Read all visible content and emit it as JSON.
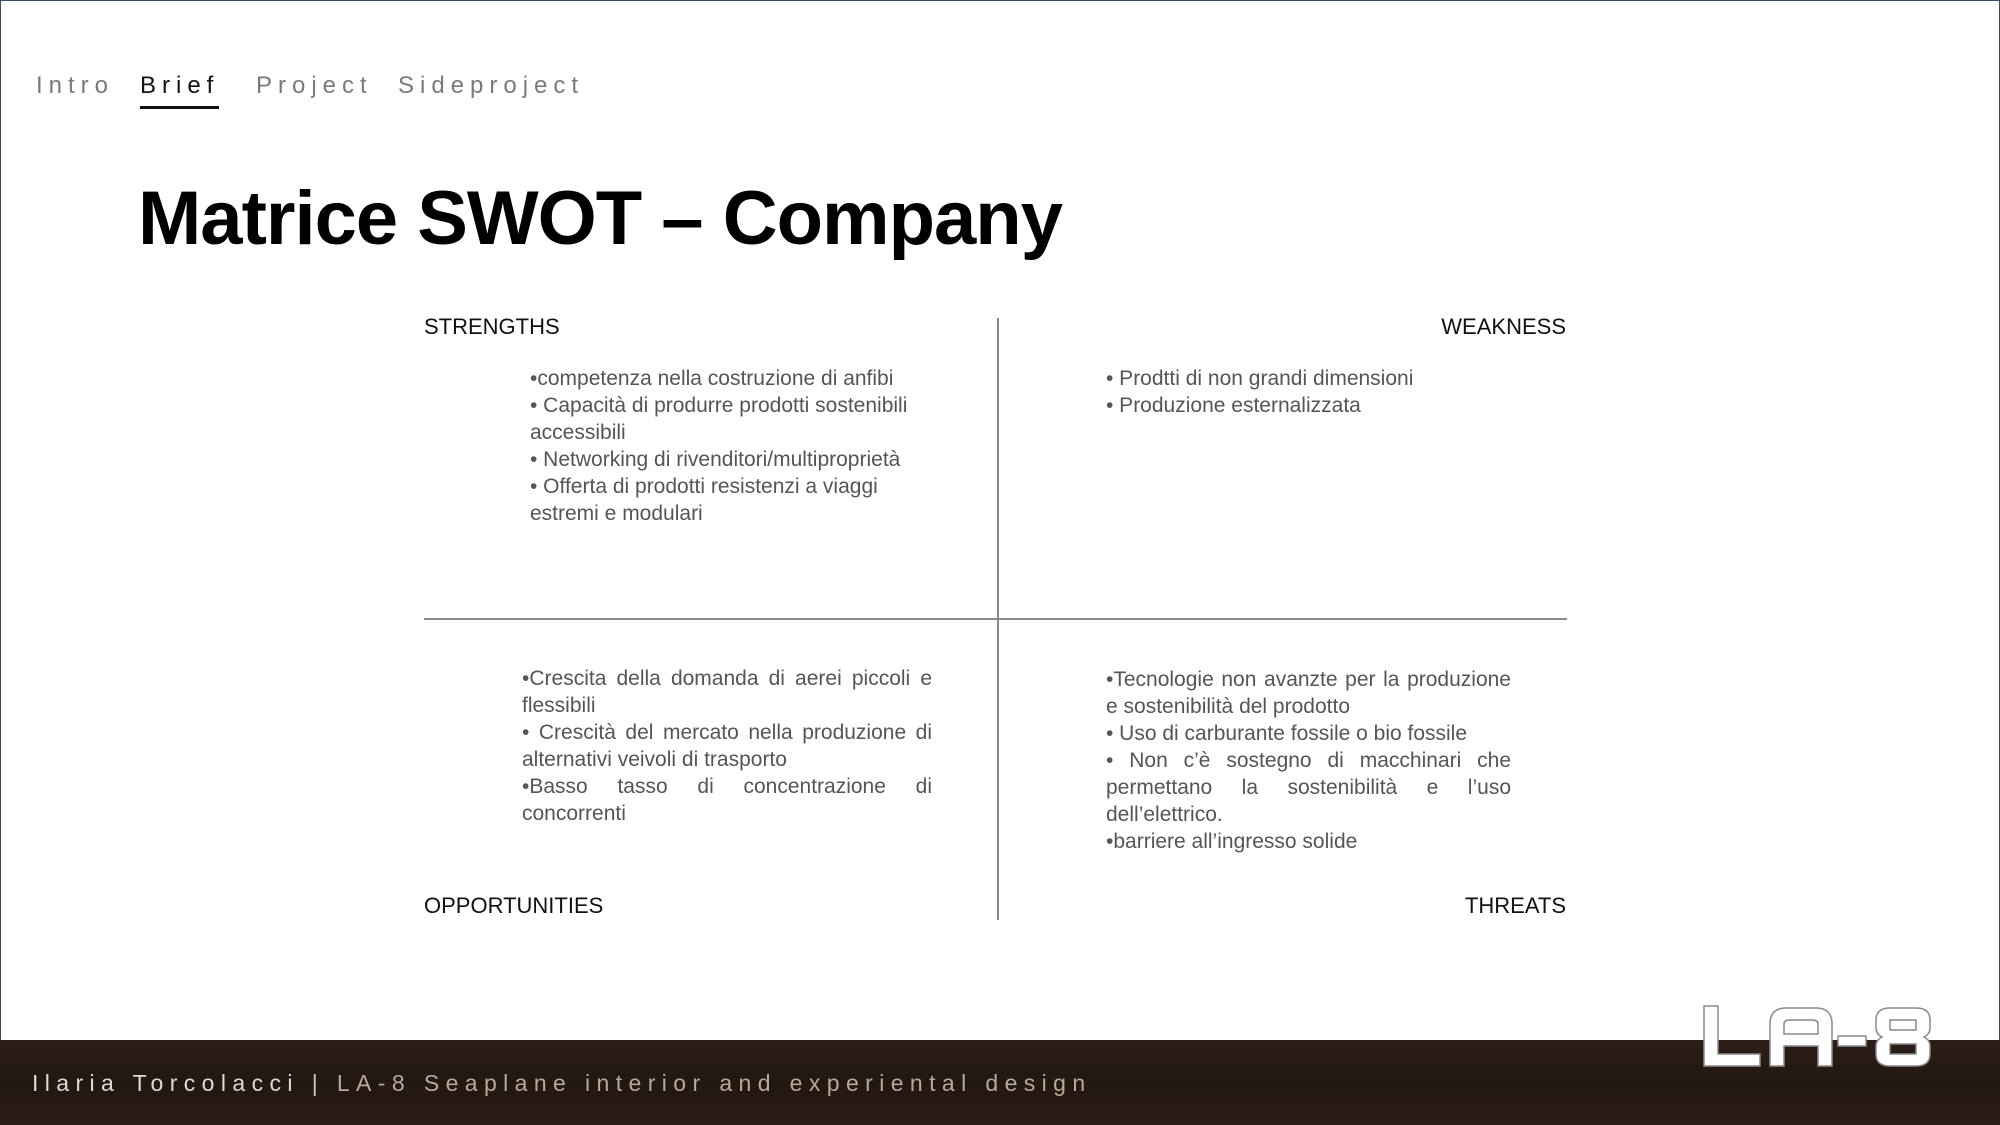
{
  "nav": {
    "items": [
      {
        "label": "Intro",
        "active": false
      },
      {
        "label": "Brief",
        "active": true
      },
      {
        "label": "Project",
        "active": false
      },
      {
        "label": "Sideproject",
        "active": false
      }
    ]
  },
  "title": "Matrice SWOT – Company",
  "swot": {
    "strengths": {
      "label": "STRENGTHS",
      "items": [
        "•competenza nella costruzione di anfibi",
        "• Capacità di produrre prodotti sostenibili accessibili",
        "• Networking di rivenditori/multiproprietà",
        "• Offerta di prodotti resistenzi a viaggi estremi e modulari"
      ]
    },
    "weakness": {
      "label": "WEAKNESS",
      "items": [
        "• Prodtti di non grandi dimensioni",
        "• Produzione esternalizzata"
      ]
    },
    "opportunities": {
      "label": "OPPORTUNITIES",
      "items": [
        "•Crescita della domanda di aerei piccoli e flessibili",
        "• Crescità del mercato nella produzione di alternativi veivoli di trasporto",
        "•Basso tasso di concentrazione di concorrenti"
      ]
    },
    "threats": {
      "label": "THREATS",
      "items": [
        "•Tecnologie non avanzte per la produzione e sostenibilità del prodotto",
        "• Uso di carburante fossile o bio fossile",
        "• Non c’è sostegno di macchinari che permettano la sostenibilità e l’uso dell’elettrico.",
        "•barriere all’ingresso solide"
      ]
    }
  },
  "footer": {
    "author": "Ilaria Torcolacci",
    "separator": "|",
    "description": "LA-8 Seaplane interior and experiental design"
  },
  "logo": {
    "text": "LA-8"
  },
  "colors": {
    "accent": "#111111",
    "nav_inactive": "#7a7a7a",
    "footer_bg": "#2a1c16",
    "footer_text": "#e3d9c8"
  }
}
